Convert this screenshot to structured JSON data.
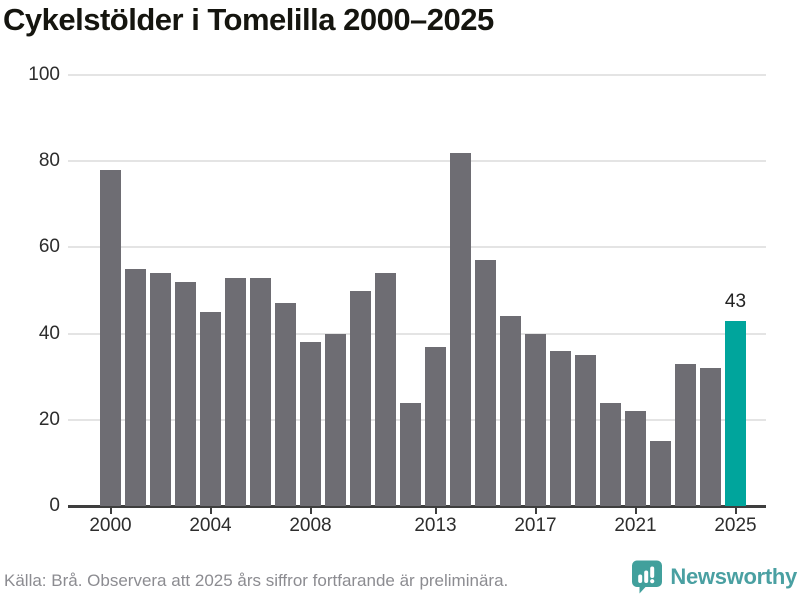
{
  "title": "Cykelstölder i Tomelilla 2000–2025",
  "chart_data": {
    "type": "bar",
    "title": "Cykelstölder i Tomelilla 2000–2025",
    "x": [
      2000,
      2001,
      2002,
      2003,
      2004,
      2005,
      2006,
      2007,
      2008,
      2009,
      2010,
      2011,
      2012,
      2013,
      2014,
      2015,
      2016,
      2017,
      2018,
      2019,
      2020,
      2021,
      2022,
      2023,
      2024,
      2025
    ],
    "values": [
      78,
      55,
      54,
      52,
      45,
      53,
      53,
      47,
      38,
      40,
      50,
      54,
      24,
      37,
      82,
      57,
      44,
      40,
      36,
      35,
      24,
      22,
      15,
      33,
      32,
      43
    ],
    "xlabel": "",
    "ylabel": "",
    "ylim": [
      0,
      100
    ],
    "yticks": [
      0,
      20,
      40,
      60,
      80,
      100
    ],
    "xticks": [
      2000,
      2004,
      2008,
      2013,
      2017,
      2021,
      2025
    ],
    "grid": "horizontal",
    "legend": "none",
    "bar_color": "#6e6d73",
    "highlight_color": "#00a59c",
    "highlight_index": 25,
    "annotation": {
      "index": 25,
      "text": "43"
    }
  },
  "footer": {
    "source": "Källa: Brå. Observera att 2025 års siffror fortfarande är preliminära.",
    "logo_text": "Newsworthy"
  }
}
